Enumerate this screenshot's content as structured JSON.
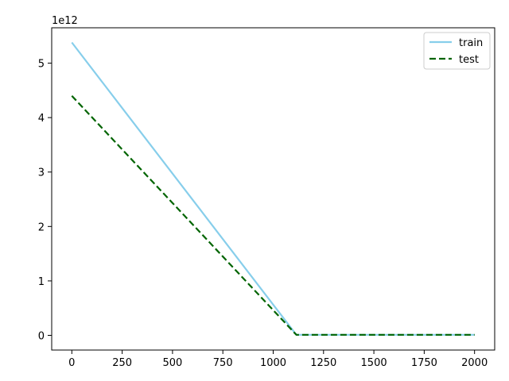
{
  "chart_data": {
    "type": "line",
    "title": "",
    "xlabel": "",
    "ylabel": "",
    "y_offset_label": "1e12",
    "xlim": [
      -100,
      2100
    ],
    "ylim": [
      -0.27,
      5.65
    ],
    "x_ticks": [
      {
        "value": 0,
        "label": "0"
      },
      {
        "value": 250,
        "label": "250"
      },
      {
        "value": 500,
        "label": "500"
      },
      {
        "value": 750,
        "label": "750"
      },
      {
        "value": 1000,
        "label": "1000"
      },
      {
        "value": 1250,
        "label": "1250"
      },
      {
        "value": 1500,
        "label": "1500"
      },
      {
        "value": 1750,
        "label": "1750"
      },
      {
        "value": 2000,
        "label": "2000"
      }
    ],
    "y_ticks": [
      {
        "value": 0,
        "label": "0"
      },
      {
        "value": 1,
        "label": "1"
      },
      {
        "value": 2,
        "label": "2"
      },
      {
        "value": 3,
        "label": "3"
      },
      {
        "value": 4,
        "label": "4"
      },
      {
        "value": 5,
        "label": "5"
      }
    ],
    "grid": false,
    "legend_position": "top-right",
    "series": [
      {
        "name": "train",
        "color": "#87ceeb",
        "style": "solid",
        "x": [
          0,
          1115,
          2000
        ],
        "values": [
          5.38,
          0.01,
          0.01
        ]
      },
      {
        "name": "test",
        "color": "#006400",
        "style": "dashed",
        "x": [
          0,
          1115,
          2000
        ],
        "values": [
          4.4,
          0.01,
          0.01
        ]
      }
    ]
  }
}
